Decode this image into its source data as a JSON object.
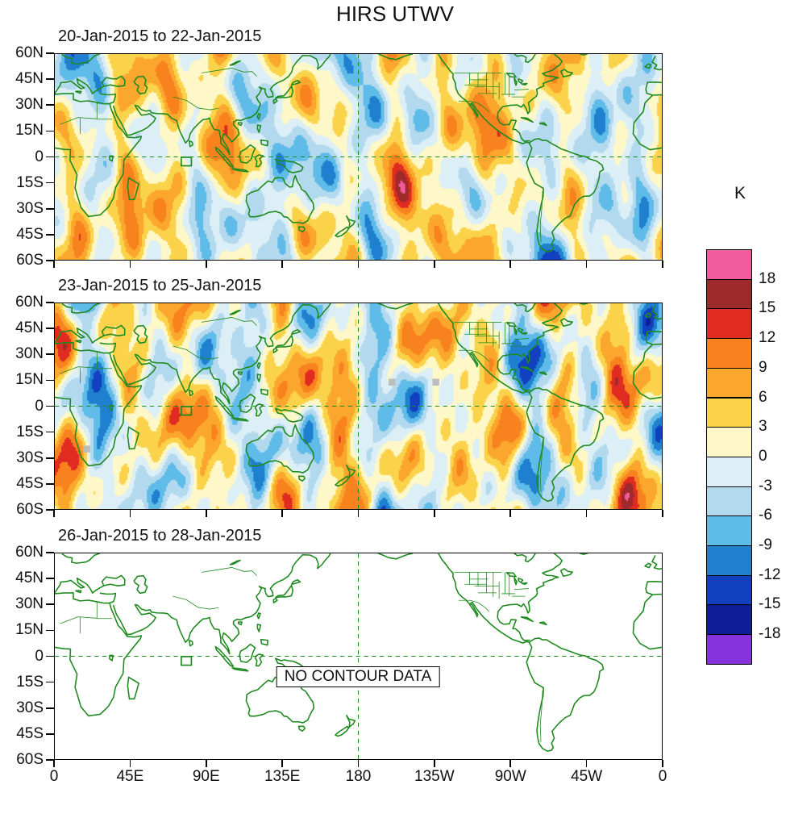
{
  "title": "HIRS UTWV",
  "panels": [
    {
      "title": "20-Jan-2015 to 22-Jan-2015",
      "has_data": true
    },
    {
      "title": "23-Jan-2015 to 25-Jan-2015",
      "has_data": true
    },
    {
      "title": "26-Jan-2015 to 28-Jan-2015",
      "has_data": false,
      "annotation": "NO CONTOUR DATA"
    }
  ],
  "axes": {
    "lat_tick_labels": [
      "60N",
      "45N",
      "30N",
      "15N",
      "0",
      "15S",
      "30S",
      "45S",
      "60S"
    ],
    "lon_tick_labels": [
      "0",
      "45E",
      "90E",
      "135E",
      "180",
      "135W",
      "90W",
      "45W",
      "0"
    ]
  },
  "colorbar": {
    "unit": "K",
    "tick_labels": [
      "18",
      "15",
      "12",
      "9",
      "6",
      "3",
      "0",
      "-3",
      "-6",
      "-9",
      "-12",
      "-15",
      "-18"
    ],
    "colors_top_to_bottom": [
      "#F25C9F",
      "#9E2A2B",
      "#E02B20",
      "#F8821E",
      "#FBA72E",
      "#FBD34A",
      "#FEF7C7",
      "#DCEFF6",
      "#B3D9EF",
      "#5FBBE8",
      "#2080D0",
      "#1240C0",
      "#0F1E96",
      "#8633DD"
    ]
  },
  "map": {
    "coast_color": "#1F8A1F",
    "grid_color": "#1F8A1F",
    "missing_data_color": "#BDBDBD"
  },
  "chart_data": {
    "type": "heatmap",
    "subtype": "filled-contour-anomaly-maps",
    "title": "HIRS UTWV",
    "units": "K",
    "contour_levels": [
      -18,
      -15,
      -12,
      -9,
      -6,
      -3,
      0,
      3,
      6,
      9,
      12,
      15,
      18
    ],
    "level_colors_high_to_low": [
      "#F25C9F",
      "#9E2A2B",
      "#E02B20",
      "#F8821E",
      "#FBA72E",
      "#FBD34A",
      "#FEF7C7",
      "#DCEFF6",
      "#B3D9EF",
      "#5FBBE8",
      "#2080D0",
      "#1240C0",
      "#0F1E96",
      "#8633DD"
    ],
    "lon_axis": {
      "range_deg_east": [
        0,
        360
      ],
      "ticks": [
        "0",
        "45E",
        "90E",
        "135E",
        "180",
        "135W",
        "90W",
        "45W",
        "0"
      ]
    },
    "lat_axis": {
      "range_deg": [
        -60,
        60
      ],
      "ticks": [
        "60N",
        "45N",
        "30N",
        "15N",
        "0",
        "15S",
        "30S",
        "45S",
        "60S"
      ]
    },
    "panels": [
      {
        "date_range": "20-Jan-2015 to 22-Jan-2015",
        "has_contour_data": true
      },
      {
        "date_range": "23-Jan-2015 to 25-Jan-2015",
        "has_contour_data": true,
        "gray_missing_data_squares_lonlat": [
          [
            200,
            14
          ],
          [
            226,
            14
          ],
          [
            19,
            -25
          ]
        ]
      },
      {
        "date_range": "26-Jan-2015 to 28-Jan-2015",
        "has_contour_data": false,
        "annotation": "NO CONTOUR DATA"
      }
    ],
    "reference_lines": {
      "equator_dashed": true,
      "meridian_180_dashed": true
    },
    "green_box_marker_lonlat": [
      78,
      -2
    ],
    "colorbar_position": "right"
  }
}
